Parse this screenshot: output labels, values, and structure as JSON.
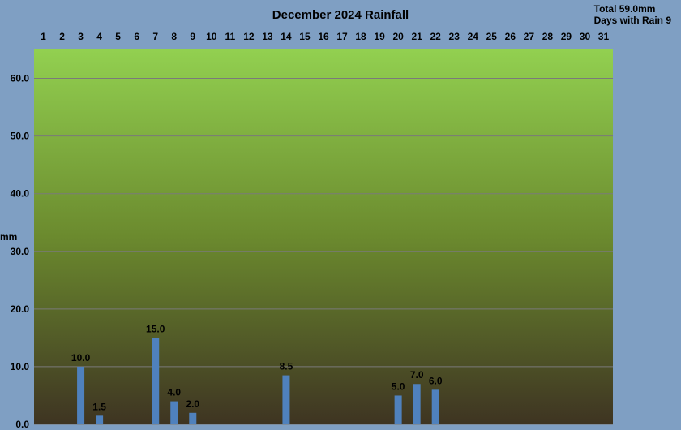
{
  "chart_data": {
    "type": "bar",
    "title": "December 2024 Rainfall",
    "ylabel": "mm",
    "ylim": [
      0,
      65
    ],
    "yticks": [
      "0.0",
      "10.0",
      "20.0",
      "30.0",
      "40.0",
      "50.0",
      "60.0"
    ],
    "grid": true,
    "categories": [
      "1",
      "2",
      "3",
      "4",
      "5",
      "6",
      "7",
      "8",
      "9",
      "10",
      "11",
      "12",
      "13",
      "14",
      "15",
      "16",
      "17",
      "18",
      "19",
      "20",
      "21",
      "22",
      "23",
      "24",
      "25",
      "26",
      "27",
      "28",
      "29",
      "30",
      "31"
    ],
    "values": [
      0,
      0,
      10.0,
      1.5,
      0,
      0,
      15.0,
      4.0,
      2.0,
      0,
      0,
      0,
      0,
      8.5,
      0,
      0,
      0,
      0,
      0,
      5.0,
      7.0,
      6.0,
      0,
      0,
      0,
      0,
      0,
      0,
      0,
      0,
      0
    ],
    "data_labels": [
      "",
      "",
      "10.0",
      "1.5",
      "",
      "",
      "15.0",
      "4.0",
      "2.0",
      "",
      "",
      "",
      "",
      "8.5",
      "",
      "",
      "",
      "",
      "",
      "5.0",
      "7.0",
      "6.0",
      "",
      "",
      "",
      "",
      "",
      "",
      "",
      "",
      ""
    ],
    "colors": {
      "bar": "#4f81bd",
      "plot_top": "#92d050",
      "plot_bottom": "#3e3422",
      "background": "#7f9fc3"
    }
  },
  "summary": {
    "total": "Total 59.0mm",
    "days_with_rain": "Days with Rain 9"
  }
}
